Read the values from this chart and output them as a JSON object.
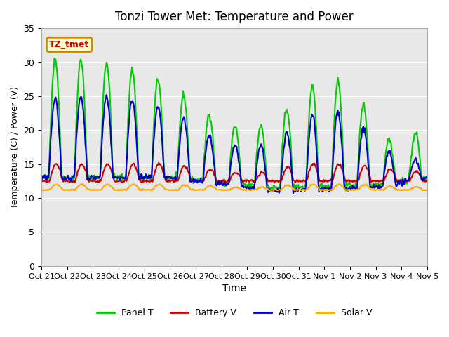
{
  "title": "Tonzi Tower Met: Temperature and Power",
  "xlabel": "Time",
  "ylabel": "Temperature (C) / Power (V)",
  "ylim": [
    0,
    35
  ],
  "yticks": [
    0,
    5,
    10,
    15,
    20,
    25,
    30,
    35
  ],
  "annotation_text": "TZ_tmet",
  "annotation_box_color": "#ffffcc",
  "annotation_text_color": "#cc0000",
  "annotation_border_color": "#cc8800",
  "background_color": "#e8e8e8",
  "fig_bg": "#ffffff",
  "grid_color": "#ffffff",
  "xtick_labels": [
    "Oct 21",
    "Oct 22",
    "Oct 23",
    "Oct 24",
    "Oct 25",
    "Oct 26",
    "Oct 27",
    "Oct 28",
    "Oct 29",
    "Oct 30",
    "Oct 31",
    "Nov 1",
    "Nov 2",
    "Nov 3",
    "Nov 4",
    "Nov 5"
  ],
  "series_colors": [
    "#00cc00",
    "#cc0000",
    "#0000cc",
    "#ffaa00"
  ],
  "series_labels": [
    "Panel T",
    "Battery V",
    "Air T",
    "Solar V"
  ],
  "series_linewidths": [
    1.5,
    1.5,
    1.5,
    1.5
  ],
  "n_days": 15
}
